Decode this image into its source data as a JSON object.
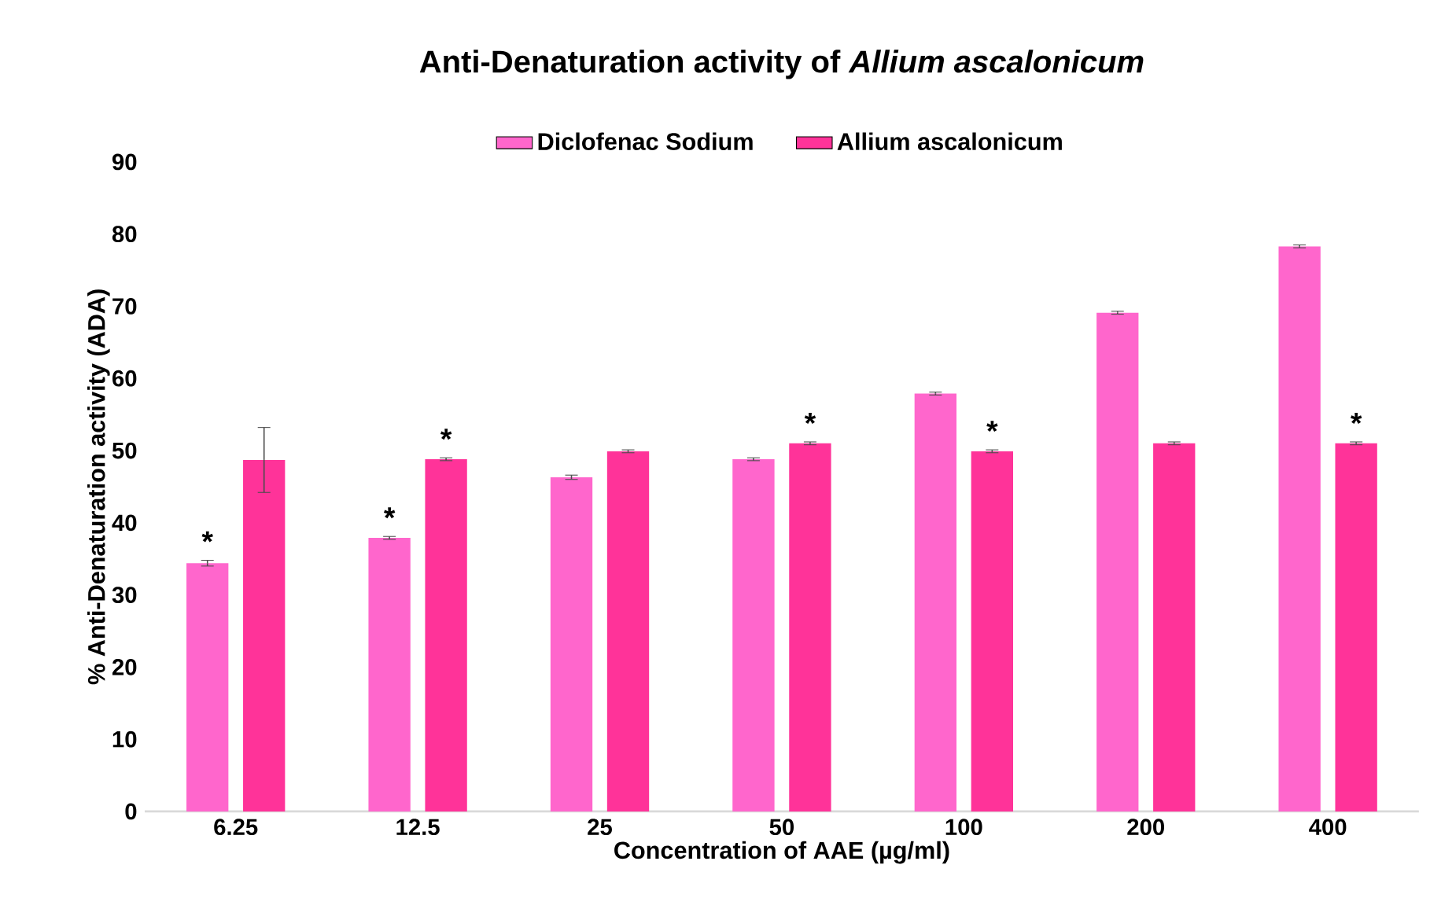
{
  "chart_data": {
    "type": "bar",
    "title": "Anti-Denaturation activity of *Allium ascalonicum*",
    "xlabel": "Concentration of AAE (µg/ml)",
    "ylabel": "% Anti-Denaturation activity (ADA)",
    "categories": [
      "6.25",
      "12.5",
      "25",
      "50",
      "100",
      "200",
      "400"
    ],
    "series": [
      {
        "name": "Diclofenac Sodium",
        "color": "#ff66cc",
        "values": [
          34.4,
          37.9,
          46.3,
          48.8,
          57.9,
          69.1,
          78.3
        ],
        "errors": [
          0.4,
          0.2,
          0.3,
          0.2,
          0.2,
          0.2,
          0.2
        ]
      },
      {
        "name": "Allium ascalonicum",
        "color": "#ff3399",
        "values": [
          48.7,
          48.8,
          49.9,
          51.0,
          49.9,
          51.0,
          51.0
        ],
        "errors": [
          4.5,
          0.2,
          0.2,
          0.2,
          0.2,
          0.2,
          0.2
        ]
      }
    ],
    "ylim": [
      0,
      90
    ],
    "yticks": [
      0,
      10,
      20,
      30,
      40,
      50,
      60,
      70,
      80,
      90
    ],
    "grid": false,
    "legend": "top",
    "annotations": [
      {
        "text": "*",
        "x": "6.25",
        "y": 34.8
      },
      {
        "text": "*",
        "x": "12.5",
        "y": 38.1
      },
      {
        "text": "*",
        "x": "12.5",
        "y": 49.0
      },
      {
        "text": "*",
        "x": "50",
        "y": 51.2
      },
      {
        "text": "*",
        "x": "100",
        "y": 50.1
      },
      {
        "text": "*",
        "x": "400",
        "y": 51.2
      }
    ]
  }
}
